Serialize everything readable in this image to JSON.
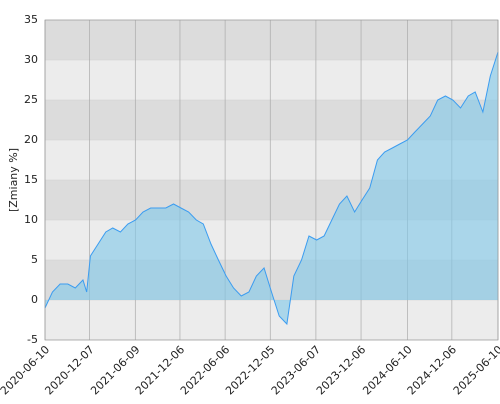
{
  "chart_data": {
    "type": "area",
    "ylabel": "[Zmiany %]",
    "x": [
      "2020-06-10",
      "2020-07-10",
      "2020-08-10",
      "2020-09-10",
      "2020-10-10",
      "2020-11-10",
      "2020-11-25",
      "2020-12-10",
      "2021-01-10",
      "2021-02-10",
      "2021-03-10",
      "2021-04-10",
      "2021-05-10",
      "2021-06-10",
      "2021-07-10",
      "2021-08-10",
      "2021-09-10",
      "2021-10-10",
      "2021-11-10",
      "2021-12-10",
      "2022-01-10",
      "2022-02-10",
      "2022-03-10",
      "2022-04-10",
      "2022-05-10",
      "2022-06-10",
      "2022-07-10",
      "2022-08-10",
      "2022-09-10",
      "2022-10-10",
      "2022-11-10",
      "2022-12-10",
      "2023-01-10",
      "2023-02-10",
      "2023-03-10",
      "2023-04-10",
      "2023-05-10",
      "2023-06-10",
      "2023-07-10",
      "2023-08-10",
      "2023-09-10",
      "2023-10-10",
      "2023-11-10",
      "2023-12-10",
      "2024-01-10",
      "2024-02-10",
      "2024-03-10",
      "2024-04-10",
      "2024-05-10",
      "2024-06-10",
      "2024-07-10",
      "2024-08-10",
      "2024-09-10",
      "2024-10-10",
      "2024-11-10",
      "2024-12-10",
      "2025-01-10",
      "2025-02-10",
      "2025-03-10",
      "2025-04-10",
      "2025-05-10",
      "2025-06-10"
    ],
    "values": [
      -1,
      1,
      2,
      2,
      1.5,
      2.5,
      1,
      5.5,
      7,
      8.5,
      9,
      8.5,
      9.5,
      10,
      11,
      11.5,
      11.5,
      11.5,
      12,
      11.5,
      11,
      10,
      9.5,
      7,
      5,
      3,
      1.5,
      0.5,
      1,
      3,
      4,
      1,
      -2,
      -3,
      3,
      5,
      8,
      7.5,
      8,
      10,
      12,
      13,
      11,
      12.5,
      14,
      17.5,
      18.5,
      19,
      19.5,
      20,
      21,
      22,
      23,
      25,
      25.5,
      25,
      24,
      25.5,
      26,
      23.5,
      28,
      31
    ],
    "color": "#3b9cf0",
    "fill": "#7ec8ea",
    "xlim": [
      "2020-06-10",
      "2025-06-10"
    ],
    "xticks": [
      "2020-06-10",
      "2020-12-07",
      "2021-06-09",
      "2021-12-06",
      "2022-06-06",
      "2022-12-05",
      "2023-06-07",
      "2023-12-06",
      "2024-06-10",
      "2024-12-06",
      "2025-06-10"
    ],
    "ylim": [
      -5,
      35
    ],
    "yticks": [
      -5,
      0,
      5,
      10,
      15,
      20,
      25,
      30,
      35
    ],
    "grid": true
  }
}
